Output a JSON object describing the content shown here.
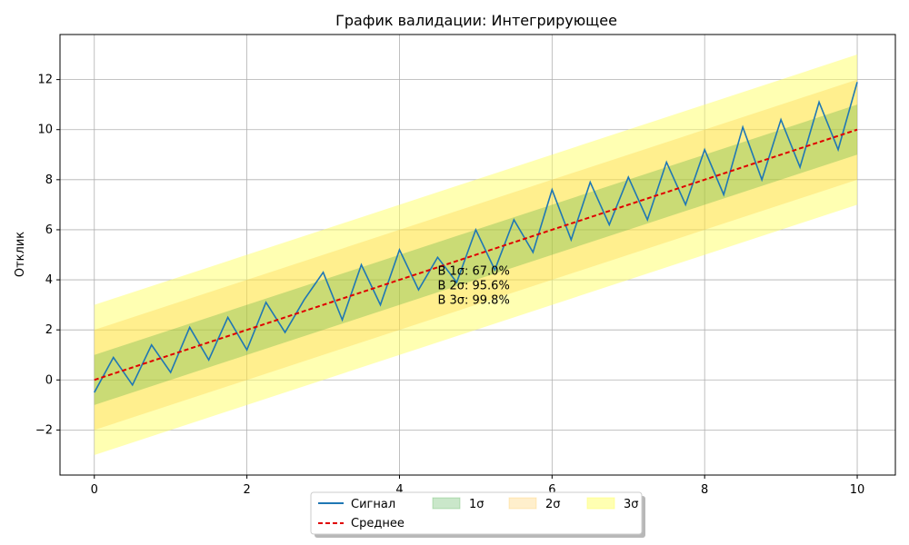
{
  "chart_data": {
    "type": "line",
    "title": "График валидации: Интегрирующее",
    "xlabel": "",
    "ylabel": "Отклик",
    "xlim": [
      -0.45,
      10.5
    ],
    "ylim": [
      -3.8,
      13.8
    ],
    "xticks": [
      0,
      2,
      4,
      6,
      8,
      10
    ],
    "yticks": [
      -2,
      0,
      2,
      4,
      6,
      8,
      10,
      12
    ],
    "xtick_labels": [
      "0",
      "2",
      "4",
      "6",
      "8",
      "10"
    ],
    "ytick_labels": [
      "−2",
      "0",
      "2",
      "4",
      "6",
      "8",
      "10",
      "12"
    ],
    "grid": true,
    "mean_line": {
      "x_start": 0,
      "y_start": 0,
      "x_end": 10,
      "y_end": 10
    },
    "sigma": 1,
    "series": [
      {
        "name": "Сигнал",
        "x": [
          0,
          0.25,
          0.5,
          0.75,
          1,
          1.25,
          1.5,
          1.75,
          2,
          2.25,
          2.5,
          2.75,
          3,
          3.25,
          3.5,
          3.75,
          4,
          4.25,
          4.5,
          4.75,
          5,
          5.25,
          5.5,
          5.75,
          6,
          6.25,
          6.5,
          6.75,
          7,
          7.25,
          7.5,
          7.75,
          8,
          8.25,
          8.5,
          8.75,
          9,
          9.25,
          9.5,
          9.75,
          10
        ],
        "y": [
          -0.5,
          0.9,
          -0.2,
          1.4,
          0.3,
          2.1,
          0.8,
          2.5,
          1.2,
          3.1,
          1.9,
          3.2,
          4.3,
          2.4,
          4.6,
          3.0,
          5.2,
          3.6,
          4.9,
          3.9,
          6.0,
          4.4,
          6.4,
          5.1,
          7.6,
          5.6,
          7.9,
          6.2,
          8.1,
          6.4,
          8.7,
          7.0,
          9.2,
          7.4,
          10.1,
          8.0,
          10.4,
          8.5,
          11.1,
          9.2,
          11.9
        ]
      },
      {
        "name": "Среднее",
        "x": [
          0,
          2,
          4,
          6,
          8,
          10
        ],
        "y": [
          0,
          2,
          4,
          6,
          8,
          10
        ]
      }
    ],
    "bands": [
      {
        "name": "1σ",
        "color": "#2ca02c"
      },
      {
        "name": "2σ",
        "color": "#ffb000"
      },
      {
        "name": "3σ",
        "color": "#ffff66"
      }
    ],
    "annotations": [
      "В 1σ: 67.0%",
      "В 2σ: 95.6%",
      "В 3σ: 99.8%"
    ],
    "annotation_position": {
      "x": 4.5,
      "y": 4.2
    },
    "colors": {
      "signal": "#1f77b4",
      "mean": "#e00000"
    },
    "legend_placement": "bottom-center"
  }
}
